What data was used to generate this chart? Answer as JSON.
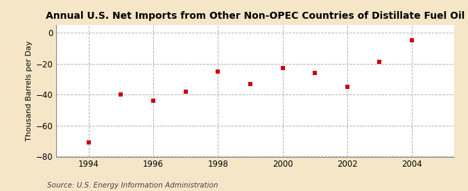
{
  "title": "Annual U.S. Net Imports from Other Non-OPEC Countries of Distillate Fuel Oil",
  "ylabel": "Thousand Barrels per Day",
  "source": "Source: U.S. Energy Information Administration",
  "background_color": "#f5e6c8",
  "plot_background_color": "#ffffff",
  "marker_color": "#cc0000",
  "marker": "s",
  "marker_size": 4,
  "x": [
    1994,
    1995,
    1996,
    1997,
    1998,
    1999,
    2000,
    2001,
    2002,
    2003,
    2004
  ],
  "y": [
    -71,
    -40,
    -44,
    -38,
    -25,
    -33,
    -23,
    -26,
    -35,
    -19,
    -5
  ],
  "xlim": [
    1993.0,
    2005.3
  ],
  "ylim": [
    -80,
    5
  ],
  "yticks": [
    0,
    -20,
    -40,
    -60,
    -80
  ],
  "xticks": [
    1994,
    1996,
    1998,
    2000,
    2002,
    2004
  ],
  "grid_color": "#b0b0b0",
  "grid_linestyle": "--",
  "title_fontsize": 10,
  "label_fontsize": 8,
  "tick_fontsize": 8.5,
  "source_fontsize": 7.5
}
